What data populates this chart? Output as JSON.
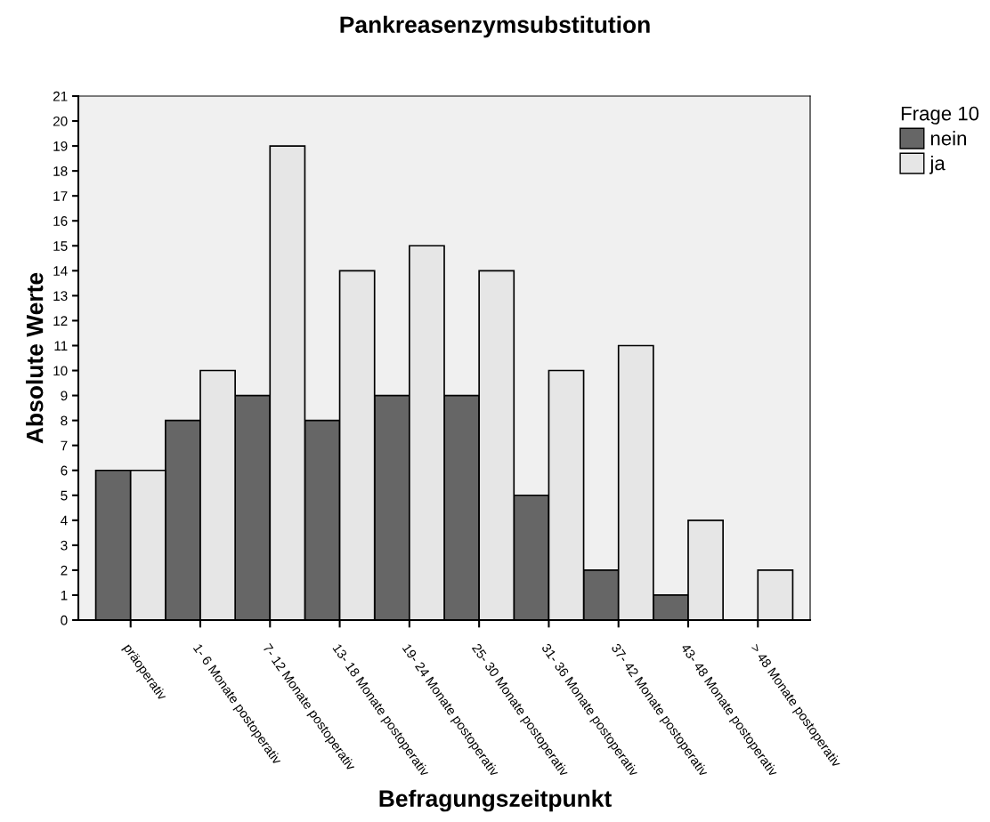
{
  "chart_data": {
    "type": "bar",
    "title": "Pankreasenzymsubstitution",
    "xlabel": "Befragungszeitpunkt",
    "ylabel": "Absolute Werte",
    "legend_title": "Frage 10",
    "categories": [
      "präoperativ",
      "1- 6 Monate postoperativ",
      "7- 12 Monate postoperativ",
      "13- 18 Monate postoperativ",
      "19- 24 Monate postoperativ",
      "25- 30 Monate postoperativ",
      "31- 36 Monate postoperativ",
      "37- 42 Monate postoperativ",
      "43- 48 Monate postoperativ",
      "> 48 Monate postoperativ"
    ],
    "series": [
      {
        "name": "nein",
        "color": "#666666",
        "values": [
          6,
          8,
          9,
          8,
          9,
          9,
          5,
          2,
          1,
          0
        ]
      },
      {
        "name": "ja",
        "color": "#e6e6e6",
        "values": [
          6,
          10,
          19,
          14,
          15,
          14,
          10,
          11,
          4,
          2
        ]
      }
    ],
    "ylim": [
      0,
      21
    ],
    "yticks": [
      0,
      1,
      2,
      3,
      4,
      5,
      6,
      7,
      8,
      9,
      10,
      11,
      12,
      13,
      14,
      15,
      16,
      17,
      18,
      19,
      20,
      21
    ],
    "grid": false,
    "legend": "top right"
  }
}
